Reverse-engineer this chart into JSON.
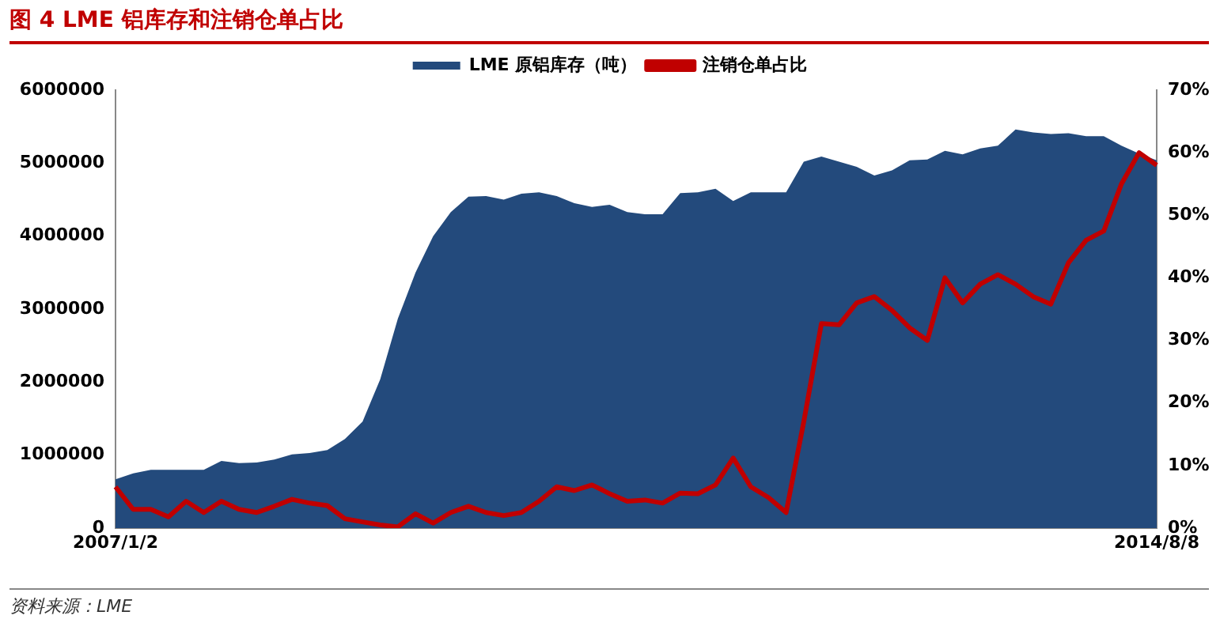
{
  "chart_data": {
    "type": "area",
    "title": "图 4    LME 铝库存和注销仓单占比",
    "annotations": [
      "资料来源：LME"
    ],
    "categories": [
      "2007/1/2",
      null,
      null,
      null,
      null,
      null,
      null,
      null,
      null,
      null,
      null,
      null,
      null,
      null,
      null,
      null,
      null,
      null,
      null,
      null,
      null,
      null,
      null,
      null,
      null,
      null,
      null,
      null,
      null,
      null,
      null,
      null,
      null,
      null,
      null,
      null,
      null,
      null,
      null,
      null,
      null,
      null,
      null,
      null,
      null,
      null,
      null,
      null,
      null,
      null,
      null,
      null,
      null,
      null,
      null,
      null,
      null,
      null,
      null,
      "2014/8/8"
    ],
    "series": [
      {
        "name": "LME 原铝库存（吨）",
        "color": "#234a7c",
        "values": [
          670000,
          750000,
          800000,
          800000,
          800000,
          800000,
          920000,
          890000,
          900000,
          940000,
          1010000,
          1030000,
          1070000,
          1220000,
          1460000,
          2040000,
          2870000,
          3500000,
          4000000,
          4330000,
          4540000,
          4550000,
          4500000,
          4580000,
          4600000,
          4550000,
          4450000,
          4400000,
          4430000,
          4330000,
          4300000,
          4300000,
          4590000,
          4600000,
          4650000,
          4480000,
          4600000,
          4600000,
          4600000,
          5020000,
          5090000,
          5020000,
          4950000,
          4830000,
          4900000,
          5040000,
          5050000,
          5170000,
          5120000,
          5200000,
          5240000,
          5460000,
          5420000,
          5400000,
          5410000,
          5370000,
          5370000,
          5240000,
          5130000,
          5040000
        ]
      },
      {
        "name": "注销仓单占比",
        "type": "line",
        "axis": "y2",
        "color": "#c00000",
        "values": [
          6.6,
          3,
          3,
          1.8,
          4.3,
          2.5,
          4.3,
          3,
          2.5,
          3.5,
          4.6,
          4,
          3.6,
          1.5,
          1,
          0.5,
          0.2,
          2.3,
          0.8,
          2.5,
          3.5,
          2.5,
          2,
          2.5,
          4.3,
          6.6,
          6,
          6.9,
          5.5,
          4.3,
          4.5,
          4,
          5.6,
          5.5,
          6.9,
          11.2,
          6.6,
          4.9,
          2.5,
          17,
          32.7,
          32.5,
          36,
          37,
          34.8,
          32,
          30,
          40,
          36,
          39,
          40.5,
          39,
          37,
          35.8,
          42.4,
          46,
          47.5,
          55,
          60,
          58
        ]
      }
    ],
    "ylim": [
      0,
      6000000
    ],
    "yticks": [
      0,
      1000000,
      2000000,
      3000000,
      4000000,
      5000000,
      6000000
    ],
    "y2lim": [
      0,
      70
    ],
    "y2ticks": [
      {
        "value": 0,
        "label": "0%"
      },
      {
        "value": 10,
        "label": "10%"
      },
      {
        "value": 20,
        "label": "20%"
      },
      {
        "value": 30,
        "label": "30%"
      },
      {
        "value": 40,
        "label": "40%"
      },
      {
        "value": 50,
        "label": "50%"
      },
      {
        "value": 60,
        "label": "60%"
      },
      {
        "value": 70,
        "label": "70%"
      }
    ],
    "legend": "top",
    "marker": "none"
  }
}
